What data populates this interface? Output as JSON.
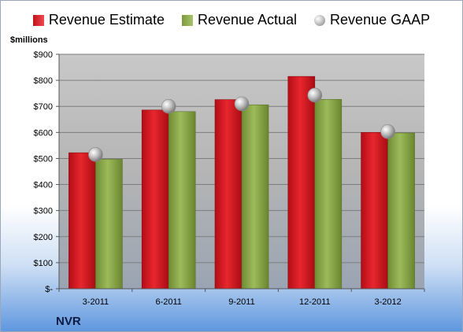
{
  "chart_data": {
    "type": "bar",
    "categories": [
      "3-2011",
      "6-2011",
      "9-2011",
      "12-2011",
      "3-2012"
    ],
    "series": [
      {
        "name": "Revenue Estimate",
        "kind": "bar",
        "color": "#e0242b",
        "values": [
          522,
          686,
          726,
          815,
          600
        ]
      },
      {
        "name": "Revenue Actual",
        "kind": "bar",
        "color": "#93b150",
        "values": [
          497,
          680,
          706,
          727,
          598
        ]
      },
      {
        "name": "Revenue GAAP",
        "kind": "marker",
        "color": "#b0b0b0",
        "values": [
          515,
          700,
          710,
          743,
          603
        ]
      }
    ],
    "ylabel": "$millions",
    "ylim": [
      0,
      900
    ],
    "yticks": [
      0,
      100,
      200,
      300,
      400,
      500,
      600,
      700,
      800,
      900
    ],
    "ytick_labels": [
      "$-",
      "$100",
      "$200",
      "$300",
      "$400",
      "$500",
      "$600",
      "$700",
      "$800",
      "$900"
    ],
    "grid": true,
    "legend_position": "top",
    "footer": "NVR"
  }
}
